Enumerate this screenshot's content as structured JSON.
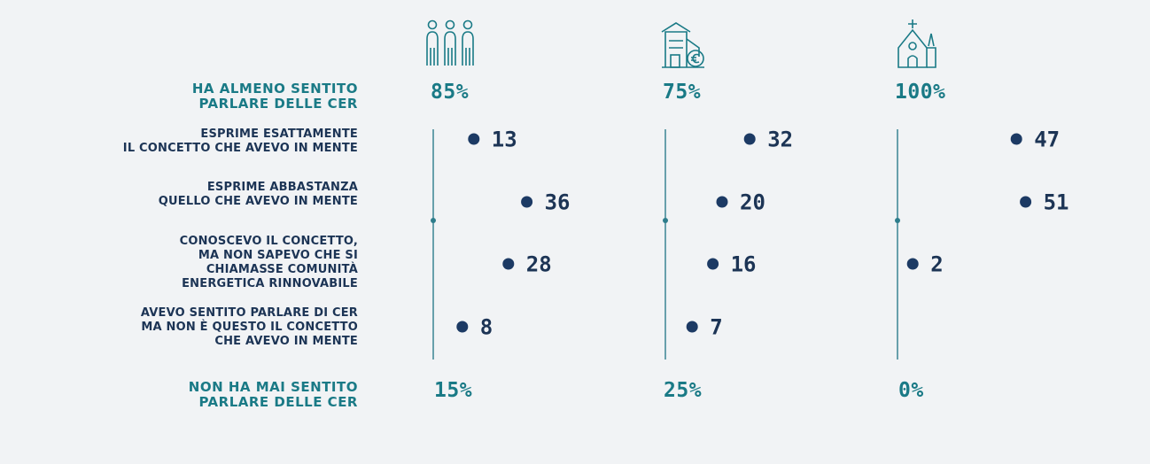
{
  "chart_data": {
    "type": "bar",
    "groups": [
      "people-icon",
      "house-euro-icon",
      "church-icon"
    ],
    "aware": {
      "label_lines": [
        "HA ALMENO SENTITO",
        "PARLARE DELLE CER"
      ],
      "values": [
        "85%",
        "75%",
        "100%"
      ]
    },
    "not_aware": {
      "label_lines": [
        "NON HA MAI SENTITO",
        "PARLARE DELLE CER"
      ],
      "values": [
        "15%",
        "25%",
        "0%"
      ]
    },
    "categories": [
      {
        "label_lines": [
          "ESPRIME ESATTAMENTE",
          "IL CONCETTO CHE AVEVO IN MENTE"
        ],
        "values": [
          13,
          32,
          47
        ]
      },
      {
        "label_lines": [
          "ESPRIME ABBASTANZA",
          "QUELLO CHE AVEVO IN MENTE"
        ],
        "values": [
          36,
          20,
          51
        ]
      },
      {
        "label_lines": [
          "CONOSCEVO IL CONCETTO,",
          "MA NON SAPEVO CHE SI",
          "CHIAMASSE COMUNITÀ",
          "ENERGETICA RINNOVABILE"
        ],
        "values": [
          28,
          16,
          2
        ]
      },
      {
        "label_lines": [
          "AVEVO SENTITO PARLARE DI CER",
          "MA NON È QUESTO IL CONCETTO",
          "CHE AVEVO IN MENTE"
        ],
        "values": [
          8,
          7,
          null
        ]
      }
    ],
    "colors": {
      "bar_start": "#3cc4a0",
      "bar_end": "#1c3a64",
      "axis": "#2e7d8c",
      "value": "#1c3455",
      "teal_text": "#1a7a86"
    }
  }
}
